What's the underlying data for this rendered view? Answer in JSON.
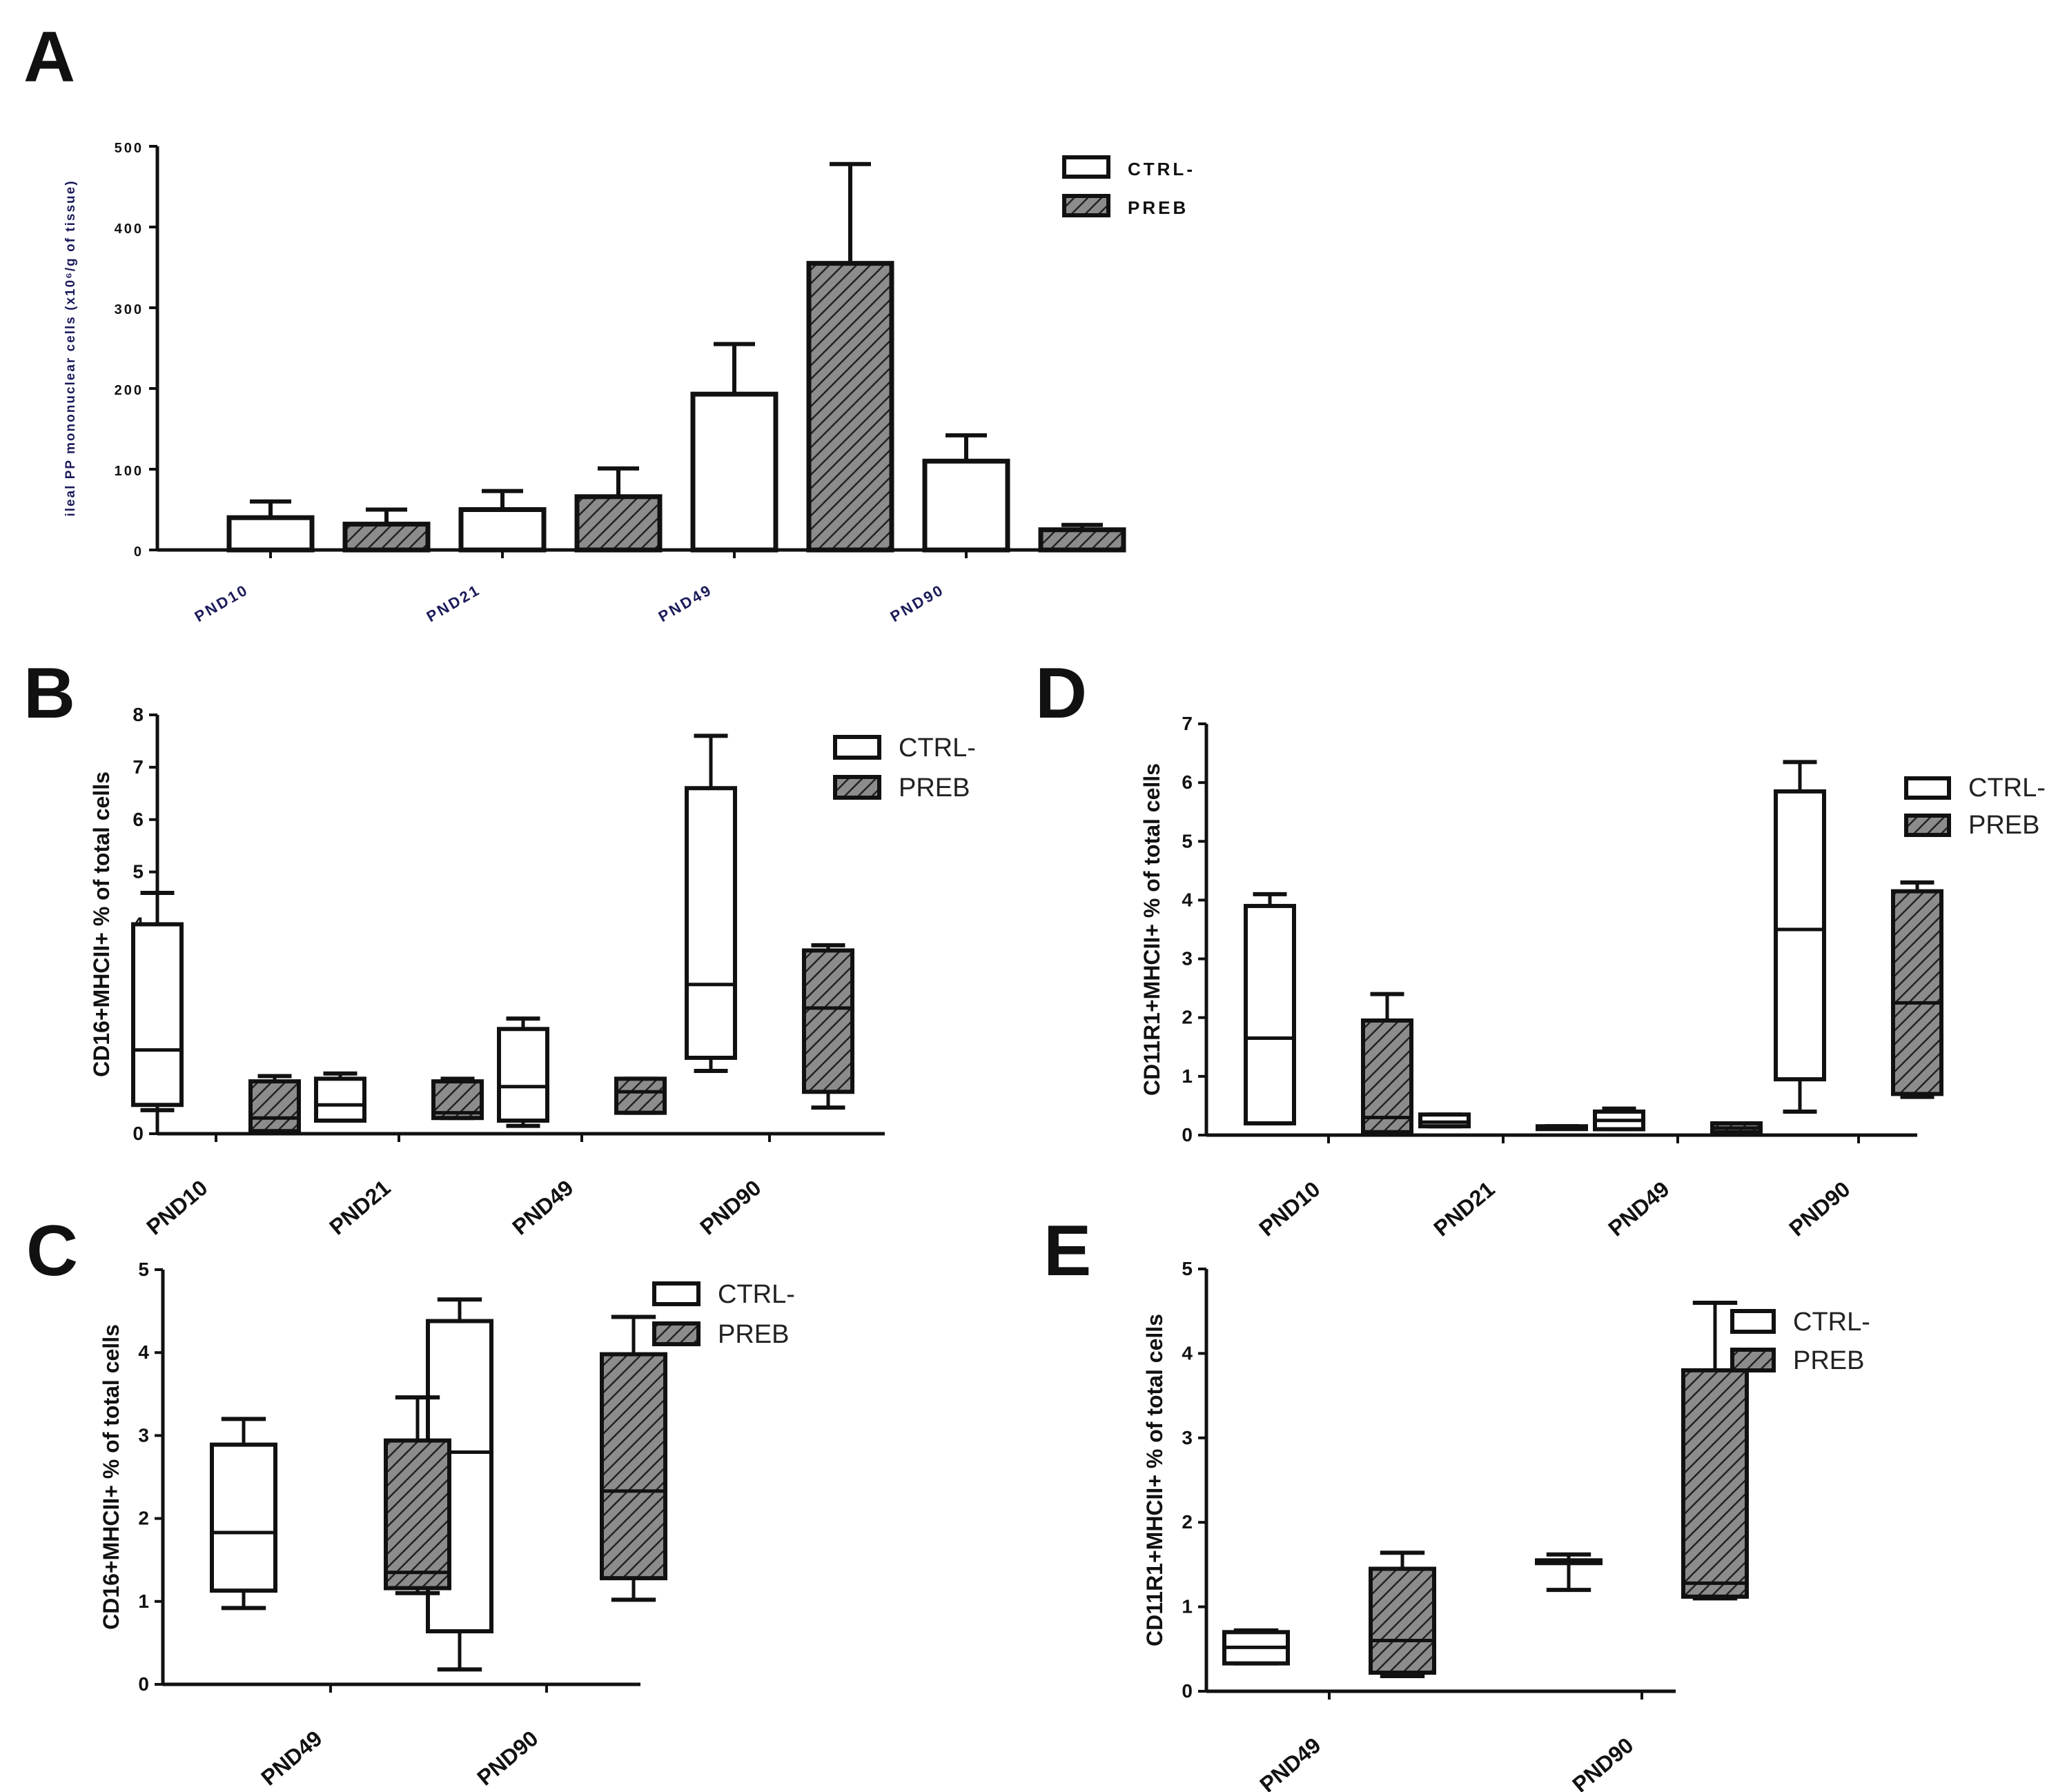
{
  "colors": {
    "ink": "#111111",
    "hatch_fill": "#8c8c8c",
    "hatch_line": "#222222",
    "ctrl_fill": "#ffffff"
  },
  "chart_data": [
    {
      "panel": "A",
      "type": "bar",
      "categories": [
        "PND10",
        "PND21",
        "PND49",
        "PND90"
      ],
      "ylabel": "ileal PP mononuclear cells (x10⁶/g of tissue)",
      "ylim": [
        0,
        500
      ],
      "yticks": [
        "0",
        "100",
        "200",
        "300",
        "400",
        "500"
      ],
      "legend": [
        "CTRL-",
        "PREB"
      ],
      "legend_position": "top-right",
      "series": [
        {
          "name": "CTRL-",
          "values": [
            40,
            50,
            193,
            110
          ],
          "errors": [
            20,
            23,
            62,
            32
          ]
        },
        {
          "name": "PREB",
          "values": [
            32,
            66,
            355,
            25
          ],
          "errors": [
            18,
            35,
            123,
            6
          ]
        }
      ]
    },
    {
      "panel": "B",
      "type": "box",
      "categories": [
        "PND10",
        "PND21",
        "PND49",
        "PND90"
      ],
      "ylabel": "CD16+MHCII+ % of total cells",
      "ylim": [
        0,
        8
      ],
      "yticks": [
        "0",
        "1",
        "2",
        "3",
        "4",
        "5",
        "6",
        "7",
        "8"
      ],
      "legend": [
        "CTRL-",
        "PREB"
      ],
      "legend_position": "top-right",
      "series": [
        {
          "name": "CTRL-",
          "boxes": [
            {
              "min": 0.45,
              "q1": 0.55,
              "median": 1.6,
              "q3": 4.0,
              "max": 4.6
            },
            {
              "min": 0.25,
              "q1": 0.25,
              "median": 0.55,
              "q3": 1.05,
              "max": 1.15
            },
            {
              "min": 0.15,
              "q1": 0.25,
              "median": 0.9,
              "q3": 2.0,
              "max": 2.2
            },
            {
              "min": 1.2,
              "q1": 1.45,
              "median": 2.85,
              "q3": 6.6,
              "max": 7.6
            }
          ]
        },
        {
          "name": "PREB",
          "boxes": [
            {
              "min": 0.05,
              "q1": 0.05,
              "median": 0.3,
              "q3": 1.0,
              "max": 1.1
            },
            {
              "min": 0.3,
              "q1": 0.3,
              "median": 0.4,
              "q3": 1.0,
              "max": 1.05
            },
            {
              "min": 0.4,
              "q1": 0.4,
              "median": 0.8,
              "q3": 1.05,
              "max": 1.05
            },
            {
              "min": 0.5,
              "q1": 0.8,
              "median": 2.4,
              "q3": 3.5,
              "max": 3.6
            }
          ]
        }
      ]
    },
    {
      "panel": "C",
      "type": "box",
      "categories": [
        "PND49",
        "PND90"
      ],
      "ylabel": "CD16+MHCII+ % of total cells",
      "ylim": [
        0,
        5
      ],
      "yticks": [
        "0",
        "1",
        "2",
        "3",
        "4",
        "5"
      ],
      "legend": [
        "CTRL-",
        "PREB"
      ],
      "legend_position": "top-right",
      "series": [
        {
          "name": "CTRL-",
          "boxes": [
            {
              "min": 0.92,
              "q1": 1.13,
              "median": 1.83,
              "q3": 2.89,
              "max": 3.2
            },
            {
              "min": 0.18,
              "q1": 0.64,
              "median": 2.8,
              "q3": 4.38,
              "max": 4.64
            }
          ]
        },
        {
          "name": "PREB",
          "boxes": [
            {
              "min": 1.1,
              "q1": 1.16,
              "median": 1.35,
              "q3": 2.94,
              "max": 3.46
            },
            {
              "min": 1.02,
              "q1": 1.28,
              "median": 2.33,
              "q3": 3.98,
              "max": 4.43
            }
          ]
        }
      ]
    },
    {
      "panel": "D",
      "type": "box",
      "categories": [
        "PND10",
        "PND21",
        "PND49",
        "PND90"
      ],
      "ylabel": "CD11R1+MHCII+ % of total cells",
      "ylim": [
        0,
        7
      ],
      "yticks": [
        "0",
        "1",
        "2",
        "3",
        "4",
        "5",
        "6",
        "7"
      ],
      "legend": [
        "CTRL-",
        "PREB"
      ],
      "legend_position": "top-right",
      "series": [
        {
          "name": "CTRL-",
          "boxes": [
            {
              "min": 0.2,
              "q1": 0.2,
              "median": 1.65,
              "q3": 3.9,
              "max": 4.1
            },
            {
              "min": 0.15,
              "q1": 0.15,
              "median": 0.22,
              "q3": 0.35,
              "max": 0.35
            },
            {
              "min": 0.1,
              "q1": 0.1,
              "median": 0.25,
              "q3": 0.4,
              "max": 0.45
            },
            {
              "min": 0.4,
              "q1": 0.95,
              "median": 3.5,
              "q3": 5.85,
              "max": 6.35
            }
          ]
        },
        {
          "name": "PREB",
          "boxes": [
            {
              "min": 0.05,
              "q1": 0.05,
              "median": 0.3,
              "q3": 1.95,
              "max": 2.4
            },
            {
              "min": 0.15,
              "q1": 0.15,
              "median": 0.15,
              "q3": 0.15,
              "max": 0.15
            },
            {
              "min": 0.05,
              "q1": 0.05,
              "median": 0.12,
              "q3": 0.2,
              "max": 0.2
            },
            {
              "min": 0.65,
              "q1": 0.7,
              "median": 2.25,
              "q3": 4.15,
              "max": 4.3
            }
          ]
        }
      ]
    },
    {
      "panel": "E",
      "type": "box",
      "categories": [
        "PND49",
        "PND90"
      ],
      "ylabel": "CD11R1+MHCII+ % of total cells",
      "ylim": [
        0,
        5
      ],
      "yticks": [
        "0",
        "1",
        "2",
        "3",
        "4",
        "5"
      ],
      "legend": [
        "CTRL-",
        "PREB"
      ],
      "legend_position": "top-right",
      "series": [
        {
          "name": "CTRL-",
          "boxes": [
            {
              "min": 0.33,
              "q1": 0.33,
              "median": 0.52,
              "q3": 0.7,
              "max": 0.72
            },
            {
              "min": 1.2,
              "q1": 1.55,
              "median": 1.55,
              "q3": 1.55,
              "max": 1.62
            }
          ]
        },
        {
          "name": "PREB",
          "boxes": [
            {
              "min": 0.18,
              "q1": 0.22,
              "median": 0.6,
              "q3": 1.45,
              "max": 1.64
            },
            {
              "min": 1.1,
              "q1": 1.12,
              "median": 1.28,
              "q3": 3.8,
              "max": 4.6
            }
          ]
        }
      ]
    }
  ]
}
